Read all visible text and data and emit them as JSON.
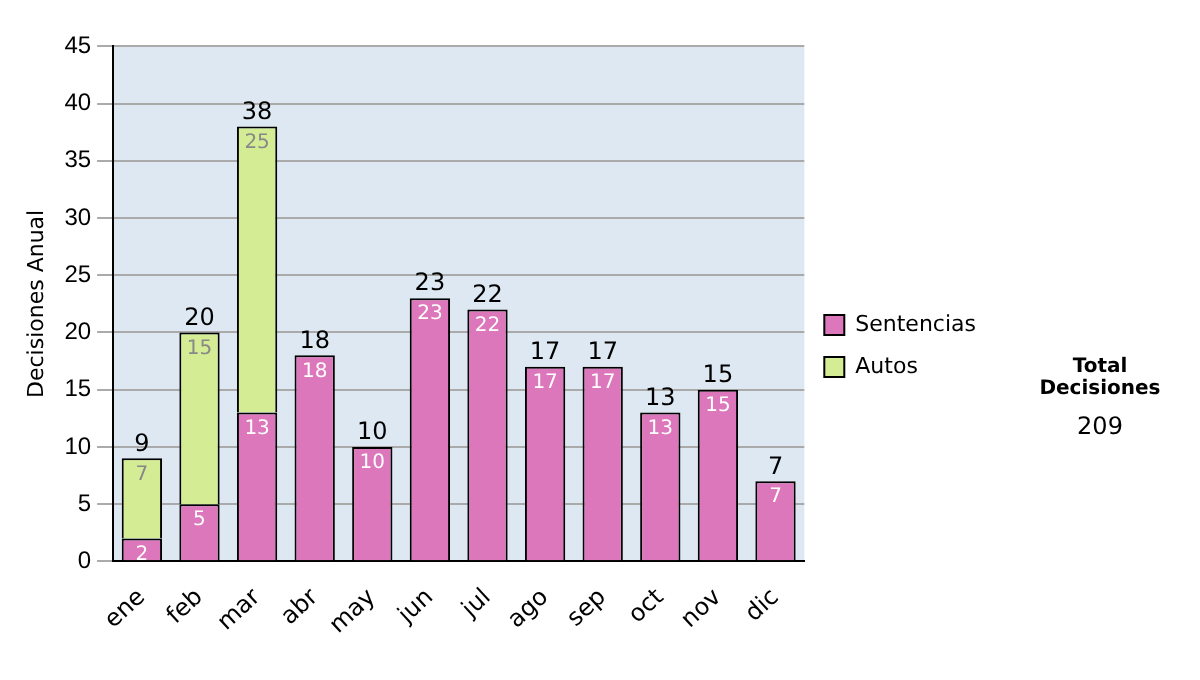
{
  "chart_data": {
    "type": "bar",
    "stacked": true,
    "ylabel": "Decisiones Anual",
    "categories": [
      "ene",
      "feb",
      "mar",
      "abr",
      "may",
      "jun",
      "jul",
      "ago",
      "sep",
      "oct",
      "nov",
      "dic"
    ],
    "series": [
      {
        "name": "Sentencias",
        "color": "#dd77bb",
        "values": [
          2,
          5,
          13,
          18,
          10,
          23,
          22,
          17,
          17,
          13,
          15,
          7
        ],
        "value_labels": [
          "2",
          "5",
          "13",
          "18",
          "10",
          "23",
          "22",
          "17",
          "17",
          "13",
          "15",
          "7"
        ]
      },
      {
        "name": "Autos",
        "color": "#d4ec94",
        "values": [
          7,
          15,
          25,
          0,
          0,
          0,
          0,
          0,
          0,
          0,
          0,
          0
        ],
        "value_labels": [
          "7",
          "15",
          "25",
          null,
          null,
          null,
          null,
          null,
          null,
          null,
          null,
          null
        ]
      }
    ],
    "totals": [
      "9",
      "20",
      "38",
      "18",
      "10",
      "23",
      "22",
      "17",
      "17",
      "13",
      "15",
      "7"
    ],
    "ylim": [
      0,
      45
    ],
    "yticks": [
      0,
      5,
      10,
      15,
      20,
      25,
      30,
      35,
      40,
      45
    ],
    "grid": "y",
    "legend": "right",
    "annotations": [
      "Total Decisiones",
      "209"
    ]
  }
}
